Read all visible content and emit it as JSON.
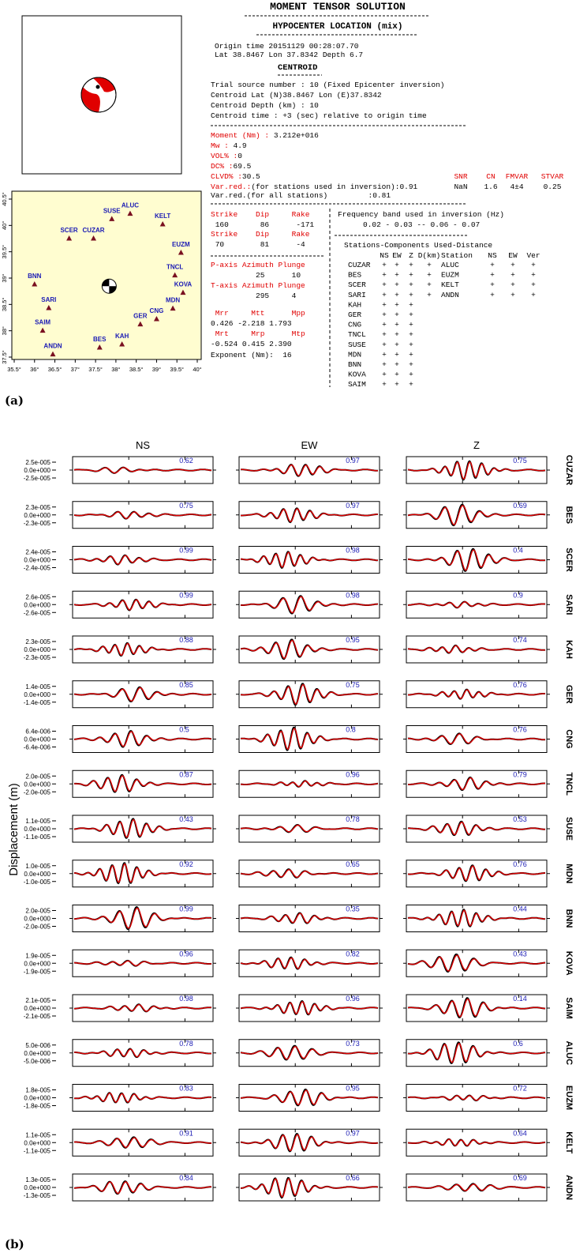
{
  "panel_a": {
    "label": "(a)",
    "title": "MOMENT TENSOR SOLUTION",
    "hypocenter": {
      "heading": "HYPOCENTER LOCATION (mix)",
      "origin_time": "Origin time 20151129 00:28:07.70",
      "location": "Lat 38.8467 Lon 37.8342 Depth 6.7"
    },
    "centroid": {
      "heading": "CENTROID",
      "lines": [
        "Trial source number : 10 (Fixed Epicenter inversion)",
        "Centroid Lat (N)38.8467 Lon (E)37.8342",
        "Centroid Depth (km) : 10",
        "Centroid time : +3 (sec) relative to origin time"
      ]
    },
    "moment": [
      {
        "label": "Moment (Nm) :",
        "value": " 3.212e+016"
      },
      {
        "label": "Mw :",
        "value": " 4.9"
      },
      {
        "label": "VOL% :",
        "value": "0"
      },
      {
        "label": "DC% :",
        "value": "69.5"
      },
      {
        "label": "CLVD% :",
        "value": "30.5"
      },
      {
        "label": "Var.red.:",
        "value": "(for stations used in inversion):0.91"
      }
    ],
    "var_red_all": "Var.red.(for all stations)         :0.81",
    "quality": {
      "headers": [
        "SNR",
        "CN",
        "FMVAR",
        "STVAR"
      ],
      "values": [
        "NaN",
        "1.6",
        "4±4",
        "0.25"
      ]
    },
    "mechanism": [
      {
        "text": "Strike    Dip     Rake",
        "color": "#e00000"
      },
      {
        "text": " 160       86      -171",
        "color": "#000000"
      },
      {
        "text": "Strike    Dip     Rake",
        "color": "#e00000"
      },
      {
        "text": " 70        81      -4",
        "color": "#000000"
      },
      {
        "text": "P-axis Azimuth Plunge",
        "color": "#e00000"
      },
      {
        "text": "          25      10",
        "color": "#000000"
      },
      {
        "text": "T-axis Azimuth Plunge",
        "color": "#e00000"
      },
      {
        "text": "          295     4",
        "color": "#000000"
      },
      {
        "text": " Mrr     Mtt      Mpp",
        "color": "#e00000"
      },
      {
        "text": "0.426 -2.218 1.793",
        "color": "#000000"
      },
      {
        "text": " Mrt     Mrp      Mtp",
        "color": "#e00000"
      },
      {
        "text": "-0.524 0.415 2.390",
        "color": "#000000"
      },
      {
        "text": "Exponent (Nm):  16",
        "color": "#000000"
      }
    ],
    "frequency_band": {
      "heading": "Frequency band used in inversion (Hz)",
      "value": "0.02 - 0.03 -- 0.06 - 0.07"
    },
    "stations_table": {
      "heading": "Stations-Components Used-Distance",
      "left_columns": [
        "NS",
        "EW",
        "Z",
        "D(km)"
      ],
      "right_columns": [
        "Station",
        "NS",
        "EW",
        "Ver"
      ],
      "left_rows": [
        [
          "CUZAR",
          "+",
          "+",
          "+",
          "+"
        ],
        [
          "BES",
          "+",
          "+",
          "+",
          "+"
        ],
        [
          "SCER",
          "+",
          "+",
          "+",
          "+"
        ],
        [
          "SARI",
          "+",
          "+",
          "+",
          "+"
        ],
        [
          "KAH",
          "+",
          "+",
          "+"
        ],
        [
          "GER",
          "+",
          "+",
          "+"
        ],
        [
          "CNG",
          "+",
          "+",
          "+"
        ],
        [
          "TNCL",
          "+",
          "+",
          "+"
        ],
        [
          "SUSE",
          "+",
          "+",
          "+"
        ],
        [
          "MDN",
          "+",
          "+",
          "+"
        ],
        [
          "BNN",
          "+",
          "+",
          "+"
        ],
        [
          "KOVA",
          "+",
          "+",
          "+"
        ],
        [
          "SAIM",
          "+",
          "+",
          "+"
        ]
      ],
      "right_rows": [
        [
          "ALUC",
          "+",
          "+",
          "+"
        ],
        [
          "EUZM",
          "+",
          "+",
          "+"
        ],
        [
          "KELT",
          "+",
          "+",
          "+"
        ],
        [
          "ANDN",
          "+",
          "+",
          "+"
        ]
      ]
    },
    "map": {
      "xlim": [
        35.5,
        40
      ],
      "ylim": [
        37.5,
        40.5
      ],
      "xticks": [
        {
          "value": 35.5,
          "label": "35.5°"
        },
        {
          "value": 36,
          "label": "36°"
        },
        {
          "value": 36.5,
          "label": "36.5°"
        },
        {
          "value": 37,
          "label": "37°"
        },
        {
          "value": 37.5,
          "label": "37.5°"
        },
        {
          "value": 38,
          "label": "38°"
        },
        {
          "value": 38.5,
          "label": "38.5°"
        },
        {
          "value": 39,
          "label": "39°"
        },
        {
          "value": 39.5,
          "label": "39.5°"
        },
        {
          "value": 40,
          "label": "40°"
        }
      ],
      "yticks": [
        {
          "value": 37.5,
          "label": "37.5°"
        },
        {
          "value": 38,
          "label": "38°"
        },
        {
          "value": 38.5,
          "label": "38.5°"
        },
        {
          "value": 39,
          "label": "39°"
        },
        {
          "value": 39.5,
          "label": "39.5°"
        },
        {
          "value": 40,
          "label": "40°"
        },
        {
          "value": 40.5,
          "label": "40.5°"
        }
      ],
      "stations": [
        {
          "name": "SUSE",
          "lon": 37.9,
          "lat": 40.12
        },
        {
          "name": "ALUC",
          "lon": 38.35,
          "lat": 40.22
        },
        {
          "name": "KELT",
          "lon": 39.15,
          "lat": 40.02
        },
        {
          "name": "SCER",
          "lon": 36.85,
          "lat": 39.75
        },
        {
          "name": "CUZAR",
          "lon": 37.45,
          "lat": 39.75
        },
        {
          "name": "EUZM",
          "lon": 39.6,
          "lat": 39.48
        },
        {
          "name": "TNCL",
          "lon": 39.45,
          "lat": 39.05
        },
        {
          "name": "BNN",
          "lon": 36.0,
          "lat": 38.88
        },
        {
          "name": "KOVA",
          "lon": 39.65,
          "lat": 38.72
        },
        {
          "name": "SARI",
          "lon": 36.35,
          "lat": 38.43
        },
        {
          "name": "MDN",
          "lon": 39.4,
          "lat": 38.42
        },
        {
          "name": "CNG",
          "lon": 39.0,
          "lat": 38.22
        },
        {
          "name": "GER",
          "lon": 38.6,
          "lat": 38.12
        },
        {
          "name": "SAIM",
          "lon": 36.2,
          "lat": 38.0
        },
        {
          "name": "KAH",
          "lon": 38.15,
          "lat": 37.74
        },
        {
          "name": "BES",
          "lon": 37.6,
          "lat": 37.68
        },
        {
          "name": "ANDN",
          "lon": 36.45,
          "lat": 37.55
        }
      ],
      "epicenter": {
        "lon": 37.8342,
        "lat": 38.8467
      }
    }
  },
  "panel_b": {
    "label": "(b)",
    "y_axis_label": "Displacement (m)",
    "components": [
      "NS",
      "EW",
      "Z"
    ],
    "colors": {
      "observed": "#000000",
      "synthetic": "#e00000",
      "variance_reduction": "#1a1ab4"
    },
    "stations": [
      {
        "name": "CUZAR",
        "yticks": [
          "2.5e-005",
          "0.0e+000",
          "-2.5e-005"
        ],
        "variance_reduction": [
          0.62,
          0.97,
          0.75
        ]
      },
      {
        "name": "BES",
        "yticks": [
          "2.3e-005",
          "0.0e+000",
          "-2.3e-005"
        ],
        "variance_reduction": [
          0.75,
          0.97,
          0.69
        ]
      },
      {
        "name": "SCER",
        "yticks": [
          "2.4e-005",
          "0.0e+000",
          "-2.4e-005"
        ],
        "variance_reduction": [
          0.99,
          0.98,
          0.4
        ]
      },
      {
        "name": "SARI",
        "yticks": [
          "2.6e-005",
          "0.0e+000",
          "-2.6e-005"
        ],
        "variance_reduction": [
          0.99,
          0.98,
          0.9
        ]
      },
      {
        "name": "KAH",
        "yticks": [
          "2.3e-005",
          "0.0e+000",
          "-2.3e-005"
        ],
        "variance_reduction": [
          0.88,
          0.95,
          0.74
        ]
      },
      {
        "name": "GER",
        "yticks": [
          "1.4e-005",
          "0.0e+000",
          "-1.4e-005"
        ],
        "variance_reduction": [
          0.85,
          0.75,
          0.76
        ]
      },
      {
        "name": "CNG",
        "yticks": [
          "6.4e-006",
          "0.0e+000",
          "-6.4e-006"
        ],
        "variance_reduction": [
          0.5,
          0.8,
          0.76
        ]
      },
      {
        "name": "TNCL",
        "yticks": [
          "2.0e-005",
          "0.0e+000",
          "-2.0e-005"
        ],
        "variance_reduction": [
          0.87,
          0.96,
          0.79
        ]
      },
      {
        "name": "SUSE",
        "yticks": [
          "1.1e-005",
          "0.0e+000",
          "-1.1e-005"
        ],
        "variance_reduction": [
          0.43,
          0.78,
          0.53
        ]
      },
      {
        "name": "MDN",
        "yticks": [
          "1.0e-005",
          "0.0e+000",
          "-1.0e-005"
        ],
        "variance_reduction": [
          0.92,
          0.65,
          0.76
        ]
      },
      {
        "name": "BNN",
        "yticks": [
          "2.0e-005",
          "0.0e+000",
          "-2.0e-005"
        ],
        "variance_reduction": [
          0.99,
          0.35,
          0.44
        ]
      },
      {
        "name": "KOVA",
        "yticks": [
          "1.9e-005",
          "0.0e+000",
          "-1.9e-005"
        ],
        "variance_reduction": [
          0.96,
          0.82,
          0.43
        ]
      },
      {
        "name": "SAIM",
        "yticks": [
          "2.1e-005",
          "0.0e+000",
          "-2.1e-005"
        ],
        "variance_reduction": [
          0.98,
          0.96,
          0.14
        ]
      },
      {
        "name": "ALUC",
        "yticks": [
          "5.0e-006",
          "0.0e+000",
          "-5.0e-006"
        ],
        "variance_reduction": [
          0.78,
          0.73,
          0.6
        ]
      },
      {
        "name": "EUZM",
        "yticks": [
          "1.8e-005",
          "0.0e+000",
          "-1.8e-005"
        ],
        "variance_reduction": [
          0.83,
          0.95,
          0.72
        ]
      },
      {
        "name": "KELT",
        "yticks": [
          "1.1e-005",
          "0.0e+000",
          "-1.1e-005"
        ],
        "variance_reduction": [
          0.91,
          0.97,
          0.64
        ]
      },
      {
        "name": "ANDN",
        "yticks": [
          "1.3e-005",
          "0.0e+000",
          "-1.3e-005"
        ],
        "variance_reduction": [
          0.84,
          0.66,
          0.69
        ]
      }
    ]
  }
}
